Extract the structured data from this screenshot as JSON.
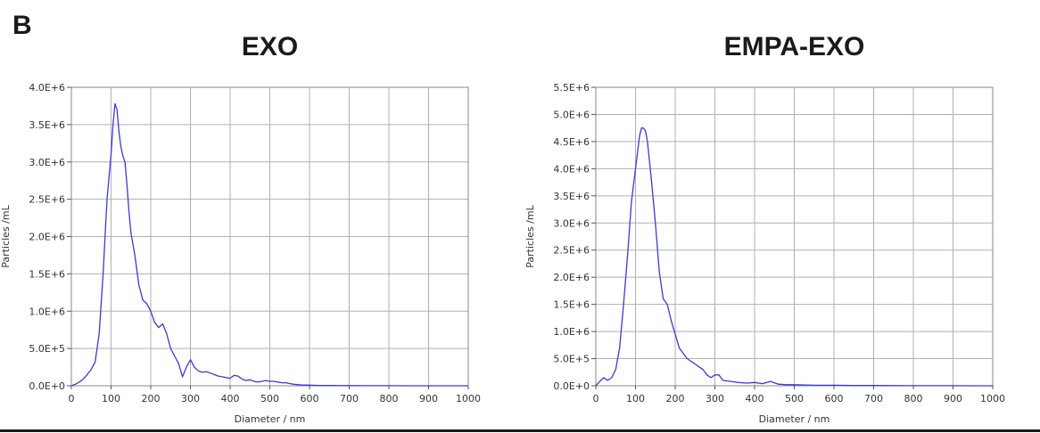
{
  "figure": {
    "panel_letter": "B"
  },
  "chart_data": [
    {
      "type": "line",
      "title": "EXO",
      "xlabel": "Diameter / nm",
      "ylabel": "Particles /mL",
      "xlim": [
        0,
        1000
      ],
      "ylim": [
        0,
        4000000
      ],
      "x_ticks": [
        "0",
        "100",
        "200",
        "300",
        "400",
        "500",
        "600",
        "700",
        "800",
        "900",
        "1000"
      ],
      "y_ticks": [
        "0.0E+0",
        "5.0E+5",
        "1.0E+6",
        "1.5E+6",
        "2.0E+6",
        "2.5E+6",
        "3.0E+6",
        "3.5E+6",
        "4.0E+6"
      ],
      "grid": true,
      "line_color": "#3a3ad8",
      "series": [
        {
          "x": [
            0,
            10,
            20,
            30,
            40,
            50,
            60,
            70,
            80,
            90,
            100,
            105,
            110,
            115,
            120,
            125,
            130,
            135,
            140,
            145,
            150,
            160,
            170,
            180,
            190,
            200,
            210,
            220,
            230,
            240,
            250,
            260,
            270,
            280,
            290,
            300,
            310,
            320,
            330,
            340,
            350,
            360,
            370,
            380,
            390,
            400,
            410,
            420,
            430,
            440,
            450,
            460,
            470,
            480,
            490,
            500,
            510,
            520,
            530,
            540,
            550,
            560,
            570,
            580,
            590,
            600,
            625,
            650,
            700,
            750,
            800,
            850,
            900,
            950,
            1000
          ],
          "values": [
            0,
            20000,
            50000,
            90000,
            150000,
            220000,
            320000,
            700000,
            1500000,
            2500000,
            3100000,
            3500000,
            3780000,
            3700000,
            3400000,
            3200000,
            3080000,
            3000000,
            2700000,
            2350000,
            2050000,
            1750000,
            1350000,
            1150000,
            1100000,
            1000000,
            850000,
            780000,
            830000,
            700000,
            500000,
            400000,
            300000,
            120000,
            250000,
            350000,
            250000,
            200000,
            180000,
            190000,
            170000,
            150000,
            130000,
            120000,
            110000,
            100000,
            140000,
            130000,
            90000,
            70000,
            80000,
            60000,
            50000,
            60000,
            70000,
            60000,
            60000,
            50000,
            40000,
            40000,
            30000,
            20000,
            15000,
            10000,
            10000,
            8000,
            5000,
            3000,
            2000,
            1000,
            1000,
            500,
            500,
            300,
            200
          ]
        }
      ]
    },
    {
      "type": "line",
      "title": "EMPA-EXO",
      "xlabel": "Diameter / nm",
      "ylabel": "Particles /mL",
      "xlim": [
        0,
        1000
      ],
      "ylim": [
        0,
        5500000
      ],
      "x_ticks": [
        "0",
        "100",
        "200",
        "300",
        "400",
        "500",
        "600",
        "700",
        "800",
        "900",
        "1000"
      ],
      "y_ticks": [
        "0.0E+0",
        "5.0E+5",
        "1.0E+6",
        "1.5E+6",
        "2.0E+6",
        "2.5E+6",
        "3.0E+6",
        "3.5E+6",
        "4.0E+6",
        "4.5E+6",
        "5.0E+6",
        "5.5E+6"
      ],
      "grid": true,
      "line_color": "#3a3ad8",
      "series": [
        {
          "x": [
            0,
            10,
            20,
            30,
            40,
            50,
            60,
            70,
            80,
            90,
            100,
            110,
            115,
            120,
            125,
            130,
            140,
            150,
            160,
            170,
            180,
            190,
            200,
            210,
            220,
            230,
            240,
            250,
            260,
            270,
            280,
            290,
            300,
            310,
            320,
            340,
            360,
            380,
            400,
            420,
            440,
            460,
            480,
            500,
            550,
            600,
            650,
            700,
            750,
            800,
            850,
            900,
            950,
            1000
          ],
          "values": [
            0,
            80000,
            150000,
            100000,
            150000,
            300000,
            700000,
            1500000,
            2400000,
            3400000,
            4000000,
            4600000,
            4750000,
            4750000,
            4700000,
            4500000,
            3800000,
            3000000,
            2100000,
            1600000,
            1500000,
            1200000,
            950000,
            700000,
            600000,
            500000,
            450000,
            400000,
            350000,
            300000,
            200000,
            150000,
            200000,
            200000,
            100000,
            80000,
            60000,
            50000,
            60000,
            40000,
            80000,
            30000,
            20000,
            20000,
            10000,
            10000,
            5000,
            5000,
            3000,
            2000,
            1000,
            1000,
            500,
            200
          ]
        }
      ]
    }
  ]
}
